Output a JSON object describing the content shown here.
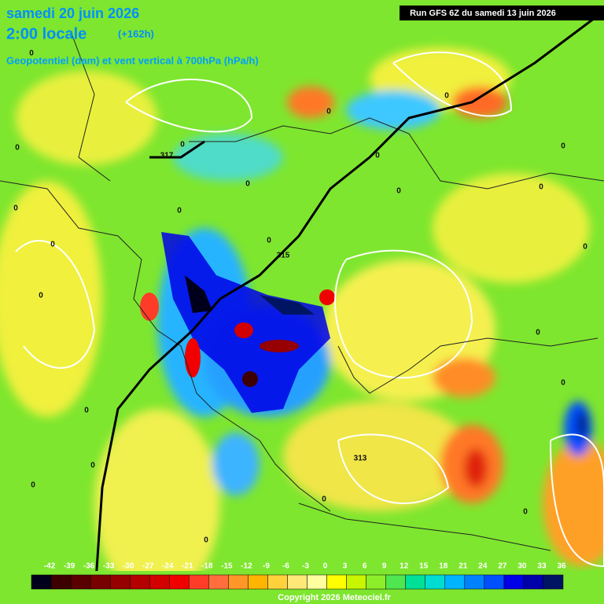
{
  "header": {
    "date": "samedi 20 juin 2026",
    "time": "2:00 locale",
    "offset": "(+162h)",
    "subtitle": "Geopotentiel (dam) et vent vertical à 700hPa (hPa/h)"
  },
  "run": "Run GFS 6Z du samedi 13 juin 2026",
  "colorbar": {
    "ticks": [
      -42,
      -39,
      -36,
      -33,
      -30,
      -27,
      -24,
      -21,
      -18,
      -15,
      -12,
      -9,
      -6,
      -3,
      0,
      3,
      6,
      9,
      12,
      15,
      18,
      21,
      24,
      27,
      30,
      33,
      36
    ],
    "colors": [
      "#00001c",
      "#3c0000",
      "#5a0000",
      "#780000",
      "#960000",
      "#b40000",
      "#d20000",
      "#f00000",
      "#ff3c28",
      "#ff6e3c",
      "#ff9628",
      "#ffb400",
      "#ffd23c",
      "#ffe878",
      "#ffffa0",
      "#ffff00",
      "#c8f500",
      "#8cee28",
      "#50e650",
      "#00e096",
      "#00dcd2",
      "#00b4ff",
      "#0082ff",
      "#0050ff",
      "#0000e6",
      "#0000aa",
      "#001464"
    ]
  },
  "contour_labels": [
    "0",
    "0",
    "0",
    "0",
    "0",
    "0",
    "0",
    "0",
    "0",
    "0",
    "0",
    "0",
    "0",
    "0",
    "0",
    "0",
    "0",
    "0",
    "0",
    "0",
    "0",
    "0",
    "0",
    "0",
    "317",
    "315",
    "313"
  ],
  "copyright": "Copyright 2026 Meteociel.fr"
}
